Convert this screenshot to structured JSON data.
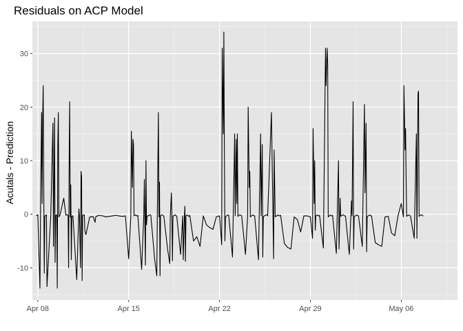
{
  "chart_data": {
    "type": "line",
    "title": "Residuals on ACP Model",
    "xlabel": "",
    "ylabel": "Acutals - Prediction",
    "xlim": [
      "2019-04-07T14:00",
      "2019-05-10T08:00"
    ],
    "ylim": [
      -16,
      36
    ],
    "x_ticks": [
      {
        "date": "2019-04-08",
        "label": "Apr 08"
      },
      {
        "date": "2019-04-15",
        "label": "Apr 15"
      },
      {
        "date": "2019-04-22",
        "label": "Apr 22"
      },
      {
        "date": "2019-04-29",
        "label": "Apr 29"
      },
      {
        "date": "2019-05-06",
        "label": "May 06"
      }
    ],
    "y_ticks": [
      {
        "value": -10,
        "label": "-10"
      },
      {
        "value": 0,
        "label": "0"
      },
      {
        "value": 10,
        "label": "10"
      },
      {
        "value": 20,
        "label": "20"
      },
      {
        "value": 30,
        "label": "30"
      }
    ],
    "grid": true,
    "background": "#e5e5e5",
    "line_color": "#000000",
    "series": [
      {
        "x": [
          "2019-04-07T21:00",
          "2019-04-08T00:00",
          "2019-04-08T04:00",
          "2019-04-08T05:00",
          "2019-04-08T07:00",
          "2019-04-08T08:00",
          "2019-04-08T09:00",
          "2019-04-08T10:00",
          "2019-04-08T11:00",
          "2019-04-08T12:00",
          "2019-04-08T13:00",
          "2019-04-08T14:00",
          "2019-04-08T15:00",
          "2019-04-08T16:00",
          "2019-04-08T17:00",
          "2019-04-09T00:00",
          "2019-04-09T04:00",
          "2019-04-09T05:00",
          "2019-04-09T07:00",
          "2019-04-09T08:00",
          "2019-04-09T09:00",
          "2019-04-09T10:00",
          "2019-04-09T11:00",
          "2019-04-09T12:00",
          "2019-04-09T13:00",
          "2019-04-09T14:00",
          "2019-04-09T15:00",
          "2019-04-09T16:00",
          "2019-04-09T17:00",
          "2019-04-10T00:00",
          "2019-04-10T04:00",
          "2019-04-10T05:00",
          "2019-04-10T07:00",
          "2019-04-10T08:00",
          "2019-04-10T09:00",
          "2019-04-10T10:00",
          "2019-04-10T11:00",
          "2019-04-10T12:00",
          "2019-04-10T13:00",
          "2019-04-10T14:00",
          "2019-04-10T15:00",
          "2019-04-10T16:00",
          "2019-04-10T17:00",
          "2019-04-11T00:00",
          "2019-04-11T04:00",
          "2019-04-11T05:00",
          "2019-04-11T07:00",
          "2019-04-11T08:00",
          "2019-04-11T09:00",
          "2019-04-11T10:00",
          "2019-04-11T11:00",
          "2019-04-11T12:00",
          "2019-04-11T13:00",
          "2019-04-11T14:00",
          "2019-04-11T15:00",
          "2019-04-11T16:00",
          "2019-04-11T17:00",
          "2019-04-12T00:00",
          "2019-04-12T04:00",
          "2019-04-12T05:00",
          "2019-04-12T07:00",
          "2019-04-12T08:00",
          "2019-04-12T09:00",
          "2019-04-12T10:00",
          "2019-04-12T11:00",
          "2019-04-12T12:00",
          "2019-04-12T13:00",
          "2019-04-12T14:00",
          "2019-04-12T15:00",
          "2019-04-12T16:00",
          "2019-04-12T17:00",
          "2019-04-13T00:00",
          "2019-04-13T06:00",
          "2019-04-13T12:00",
          "2019-04-13T18:00",
          "2019-04-14T00:00",
          "2019-04-14T06:00",
          "2019-04-14T12:00",
          "2019-04-14T18:00",
          "2019-04-15T00:00",
          "2019-04-15T04:00",
          "2019-04-15T05:00",
          "2019-04-15T07:00",
          "2019-04-15T08:00",
          "2019-04-15T09:00",
          "2019-04-15T10:00",
          "2019-04-15T11:00",
          "2019-04-15T12:00",
          "2019-04-15T13:00",
          "2019-04-15T14:00",
          "2019-04-15T15:00",
          "2019-04-15T16:00",
          "2019-04-15T17:00",
          "2019-04-16T00:00",
          "2019-04-16T04:00",
          "2019-04-16T05:00",
          "2019-04-16T07:00",
          "2019-04-16T08:00",
          "2019-04-16T09:00",
          "2019-04-16T10:00",
          "2019-04-16T11:00",
          "2019-04-16T12:00",
          "2019-04-16T13:00",
          "2019-04-16T14:00",
          "2019-04-16T15:00",
          "2019-04-16T16:00",
          "2019-04-16T17:00",
          "2019-04-17T00:00",
          "2019-04-17T04:00",
          "2019-04-17T05:00",
          "2019-04-17T07:00",
          "2019-04-17T08:00",
          "2019-04-17T09:00",
          "2019-04-17T10:00",
          "2019-04-17T11:00",
          "2019-04-17T12:00",
          "2019-04-17T13:00",
          "2019-04-17T14:00",
          "2019-04-17T15:00",
          "2019-04-17T16:00",
          "2019-04-17T17:00",
          "2019-04-18T00:00",
          "2019-04-18T04:00",
          "2019-04-18T05:00",
          "2019-04-18T07:00",
          "2019-04-18T08:00",
          "2019-04-18T09:00",
          "2019-04-18T10:00",
          "2019-04-18T11:00",
          "2019-04-18T12:00",
          "2019-04-18T13:00",
          "2019-04-18T14:00",
          "2019-04-18T15:00",
          "2019-04-18T16:00",
          "2019-04-18T17:00",
          "2019-04-19T00:00",
          "2019-04-19T04:00",
          "2019-04-19T05:00",
          "2019-04-19T07:00",
          "2019-04-19T08:00",
          "2019-04-19T09:00",
          "2019-04-19T10:00",
          "2019-04-19T11:00",
          "2019-04-19T12:00",
          "2019-04-19T13:00",
          "2019-04-19T14:00",
          "2019-04-19T15:00",
          "2019-04-19T16:00",
          "2019-04-19T17:00",
          "2019-04-20T00:00",
          "2019-04-20T06:00",
          "2019-04-20T12:00",
          "2019-04-20T18:00",
          "2019-04-21T00:00",
          "2019-04-21T06:00",
          "2019-04-21T12:00",
          "2019-04-21T18:00",
          "2019-04-22T00:00",
          "2019-04-22T04:00",
          "2019-04-22T05:00",
          "2019-04-22T07:00",
          "2019-04-22T08:00",
          "2019-04-22T09:00",
          "2019-04-22T10:00",
          "2019-04-22T11:00",
          "2019-04-22T12:00",
          "2019-04-22T13:00",
          "2019-04-22T14:00",
          "2019-04-22T15:00",
          "2019-04-22T16:00",
          "2019-04-22T17:00",
          "2019-04-23T00:00",
          "2019-04-23T04:00",
          "2019-04-23T05:00",
          "2019-04-23T07:00",
          "2019-04-23T08:00",
          "2019-04-23T09:00",
          "2019-04-23T10:00",
          "2019-04-23T11:00",
          "2019-04-23T12:00",
          "2019-04-23T13:00",
          "2019-04-23T14:00",
          "2019-04-23T15:00",
          "2019-04-23T16:00",
          "2019-04-23T17:00",
          "2019-04-24T00:00",
          "2019-04-24T04:00",
          "2019-04-24T05:00",
          "2019-04-24T07:00",
          "2019-04-24T08:00",
          "2019-04-24T09:00",
          "2019-04-24T10:00",
          "2019-04-24T11:00",
          "2019-04-24T12:00",
          "2019-04-24T13:00",
          "2019-04-24T14:00",
          "2019-04-24T15:00",
          "2019-04-24T16:00",
          "2019-04-24T17:00",
          "2019-04-25T00:00",
          "2019-04-25T04:00",
          "2019-04-25T05:00",
          "2019-04-25T07:00",
          "2019-04-25T08:00",
          "2019-04-25T09:00",
          "2019-04-25T10:00",
          "2019-04-25T11:00",
          "2019-04-25T12:00",
          "2019-04-25T13:00",
          "2019-04-25T14:00",
          "2019-04-25T15:00",
          "2019-04-25T16:00",
          "2019-04-25T17:00",
          "2019-04-26T00:00",
          "2019-04-26T04:00",
          "2019-04-26T05:00",
          "2019-04-26T07:00",
          "2019-04-26T08:00",
          "2019-04-26T09:00",
          "2019-04-26T10:00",
          "2019-04-26T11:00",
          "2019-04-26T12:00",
          "2019-04-26T13:00",
          "2019-04-26T14:00",
          "2019-04-26T15:00",
          "2019-04-26T16:00",
          "2019-04-26T17:00",
          "2019-04-27T00:00",
          "2019-04-27T06:00",
          "2019-04-27T12:00",
          "2019-04-27T18:00",
          "2019-04-28T00:00",
          "2019-04-28T06:00",
          "2019-04-28T12:00",
          "2019-04-28T18:00",
          "2019-04-29T00:00",
          "2019-04-29T04:00",
          "2019-04-29T05:00",
          "2019-04-29T07:00",
          "2019-04-29T08:00",
          "2019-04-29T09:00",
          "2019-04-29T10:00",
          "2019-04-29T11:00",
          "2019-04-29T12:00",
          "2019-04-29T13:00",
          "2019-04-29T14:00",
          "2019-04-29T15:00",
          "2019-04-29T16:00",
          "2019-04-29T17:00",
          "2019-04-30T00:00",
          "2019-04-30T04:00",
          "2019-04-30T05:00",
          "2019-04-30T07:00",
          "2019-04-30T08:00",
          "2019-04-30T09:00",
          "2019-04-30T10:00",
          "2019-04-30T11:00",
          "2019-04-30T12:00",
          "2019-04-30T13:00",
          "2019-04-30T14:00",
          "2019-04-30T15:00",
          "2019-04-30T16:00",
          "2019-04-30T17:00",
          "2019-05-01T00:00",
          "2019-05-01T04:00",
          "2019-05-01T05:00",
          "2019-05-01T07:00",
          "2019-05-01T08:00",
          "2019-05-01T09:00",
          "2019-05-01T10:00",
          "2019-05-01T11:00",
          "2019-05-01T12:00",
          "2019-05-01T13:00",
          "2019-05-01T14:00",
          "2019-05-01T15:00",
          "2019-05-01T16:00",
          "2019-05-01T17:00",
          "2019-05-02T00:00",
          "2019-05-02T04:00",
          "2019-05-02T05:00",
          "2019-05-02T07:00",
          "2019-05-02T08:00",
          "2019-05-02T09:00",
          "2019-05-02T10:00",
          "2019-05-02T11:00",
          "2019-05-02T12:00",
          "2019-05-02T13:00",
          "2019-05-02T14:00",
          "2019-05-02T15:00",
          "2019-05-02T16:00",
          "2019-05-02T17:00",
          "2019-05-03T00:00",
          "2019-05-03T04:00",
          "2019-05-03T05:00",
          "2019-05-03T07:00",
          "2019-05-03T08:00",
          "2019-05-03T09:00",
          "2019-05-03T10:00",
          "2019-05-03T11:00",
          "2019-05-03T12:00",
          "2019-05-03T13:00",
          "2019-05-03T14:00",
          "2019-05-03T15:00",
          "2019-05-03T16:00",
          "2019-05-03T17:00",
          "2019-05-04T00:00",
          "2019-05-04T06:00",
          "2019-05-04T12:00",
          "2019-05-04T18:00",
          "2019-05-05T00:00",
          "2019-05-05T06:00",
          "2019-05-05T12:00",
          "2019-05-05T18:00",
          "2019-05-06T00:00",
          "2019-05-06T04:00",
          "2019-05-06T05:00",
          "2019-05-06T07:00",
          "2019-05-06T08:00",
          "2019-05-06T09:00",
          "2019-05-06T10:00",
          "2019-05-06T11:00",
          "2019-05-06T12:00",
          "2019-05-06T13:00",
          "2019-05-06T14:00",
          "2019-05-06T15:00",
          "2019-05-06T16:00",
          "2019-05-06T17:00",
          "2019-05-07T00:00",
          "2019-05-07T04:00",
          "2019-05-07T05:00",
          "2019-05-07T07:00",
          "2019-05-07T08:00",
          "2019-05-07T09:00",
          "2019-05-07T10:00",
          "2019-05-07T11:00",
          "2019-05-07T12:00",
          "2019-05-07T13:00",
          "2019-05-07T14:00",
          "2019-05-07T15:00",
          "2019-05-07T16:00",
          "2019-05-07T17:00"
        ],
        "y": [
          -0.3,
          -0.1,
          -13.8,
          -0.5,
          19,
          2,
          18,
          24,
          6,
          -11,
          -0.3,
          -0.3,
          -0.2,
          -0.1,
          -13.5,
          -0.2,
          17,
          -6,
          18,
          -9,
          -0.2,
          -0.2,
          -0.1,
          -13.8,
          13,
          19,
          -0.5,
          -0.3,
          -0.2,
          3,
          -0.2,
          -0.1,
          -0.1,
          -0.2,
          -10,
          10,
          21,
          -0.5,
          5.5,
          -8.5,
          -0.4,
          -0.3,
          -0.3,
          -12.2,
          1,
          -0.3,
          -10,
          8,
          7,
          -12.4,
          -0.2,
          -0.2,
          -0.1,
          -0.1,
          -3,
          -3.5,
          -3.8,
          -0.5,
          -0.5,
          -0.4,
          -0.5,
          -1,
          -1.2,
          -1.5,
          -0.5,
          -0.4,
          -0.4,
          -0.3,
          -0.3,
          -0.2,
          -0.2,
          -0.3,
          -0.5,
          -0.4,
          -0.3,
          -0.2,
          -0.3,
          -0.4,
          -0.3,
          -8.3,
          -0.4,
          15.5,
          5,
          14,
          13,
          -0.3,
          -0.2,
          -0.2,
          -0.1,
          -0.2,
          -0.3,
          -0.3,
          -0.2,
          -10.3,
          -0.2,
          6.5,
          -9.5,
          10,
          -2,
          -0.4,
          -0.3,
          -0.3,
          -0.2,
          -0.2,
          -0.1,
          -0.1,
          -0.2,
          -8.3,
          -11.5,
          -0.2,
          19,
          -0.5,
          6,
          -11.5,
          -0.3,
          -0.2,
          -0.1,
          -0.1,
          -0.2,
          -0.3,
          -0.3,
          -6.5,
          -9.2,
          -0.3,
          4,
          -0.5,
          -8.7,
          -0.4,
          -0.3,
          -0.2,
          -0.2,
          -0.1,
          -0.2,
          -0.3,
          -0.4,
          -7.5,
          -0.3,
          -8.5,
          -0.5,
          1.5,
          -8.8,
          -0.3,
          -0.2,
          -0.1,
          -0.2,
          -0.3,
          -0.4,
          -0.3,
          -0.2,
          -5,
          -4.2,
          -6,
          -0.3,
          -2,
          -2.5,
          -2.8,
          -0.5,
          -0.3,
          -5.7,
          31,
          15,
          34,
          12,
          -5,
          -0.5,
          -0.4,
          -0.3,
          -0.2,
          -0.2,
          -0.1,
          -0.2,
          -8,
          15,
          -0.3,
          14,
          2,
          15,
          -0.4,
          -0.3,
          -0.2,
          -0.1,
          -0.1,
          -0.2,
          -0.2,
          -0.3,
          -7.5,
          -0.3,
          20,
          5,
          8,
          -0.5,
          -0.4,
          -0.3,
          -0.2,
          -0.2,
          -0.1,
          -0.2,
          -0.3,
          -0.3,
          -8.5,
          15,
          -0.3,
          13,
          -8,
          -0.5,
          -0.4,
          -0.3,
          -0.2,
          -0.2,
          -0.1,
          -0.1,
          -0.2,
          -0.3,
          19,
          -8.3,
          12,
          -0.5,
          -0.4,
          -0.3,
          -0.3,
          -0.2,
          -0.1,
          -0.2,
          -0.3,
          -0.3,
          -0.2,
          -0.2,
          -5.5,
          -6.2,
          -6.5,
          -0.5,
          -1,
          -3.3,
          -0.3,
          -0.3,
          -0.5,
          -4.5,
          16,
          2,
          10,
          -3,
          -0.3,
          -0.2,
          -0.2,
          -0.1,
          -0.2,
          -0.3,
          -0.3,
          -0.2,
          -6.3,
          31,
          24,
          31,
          28,
          -0.5,
          -0.4,
          -0.3,
          -0.2,
          -0.1,
          -0.2,
          -0.3,
          -0.3,
          -0.2,
          -7.3,
          10,
          -6.5,
          3,
          -0.4,
          -0.3,
          -0.2,
          -0.2,
          -0.1,
          -0.1,
          -0.2,
          -0.3,
          -0.3,
          -0.4,
          -7.5,
          2.5,
          -0.3,
          21,
          -6.5,
          -0.5,
          -0.4,
          -0.3,
          -0.2,
          -0.2,
          -0.1,
          -0.2,
          -0.3,
          -0.3,
          -6,
          20.5,
          4,
          17,
          -7,
          -0.5,
          -0.4,
          -0.3,
          -0.2,
          -0.2,
          -0.1,
          -0.2,
          -0.3,
          -0.3,
          -5.3,
          -5.7,
          -6,
          -0.5,
          -0.4,
          -3.5,
          -4,
          -0.3,
          2,
          -0.5,
          24,
          12,
          16,
          7,
          -0.4,
          -0.3,
          -0.2,
          -0.2,
          -0.1,
          -0.2,
          -0.3,
          -0.3,
          -4.5,
          15,
          -4.5,
          22.5,
          23,
          -0.4,
          -0.3,
          -0.2,
          -0.2,
          -0.1,
          -0.1,
          -0.2,
          -0.3,
          -0.3
        ]
      }
    ]
  }
}
